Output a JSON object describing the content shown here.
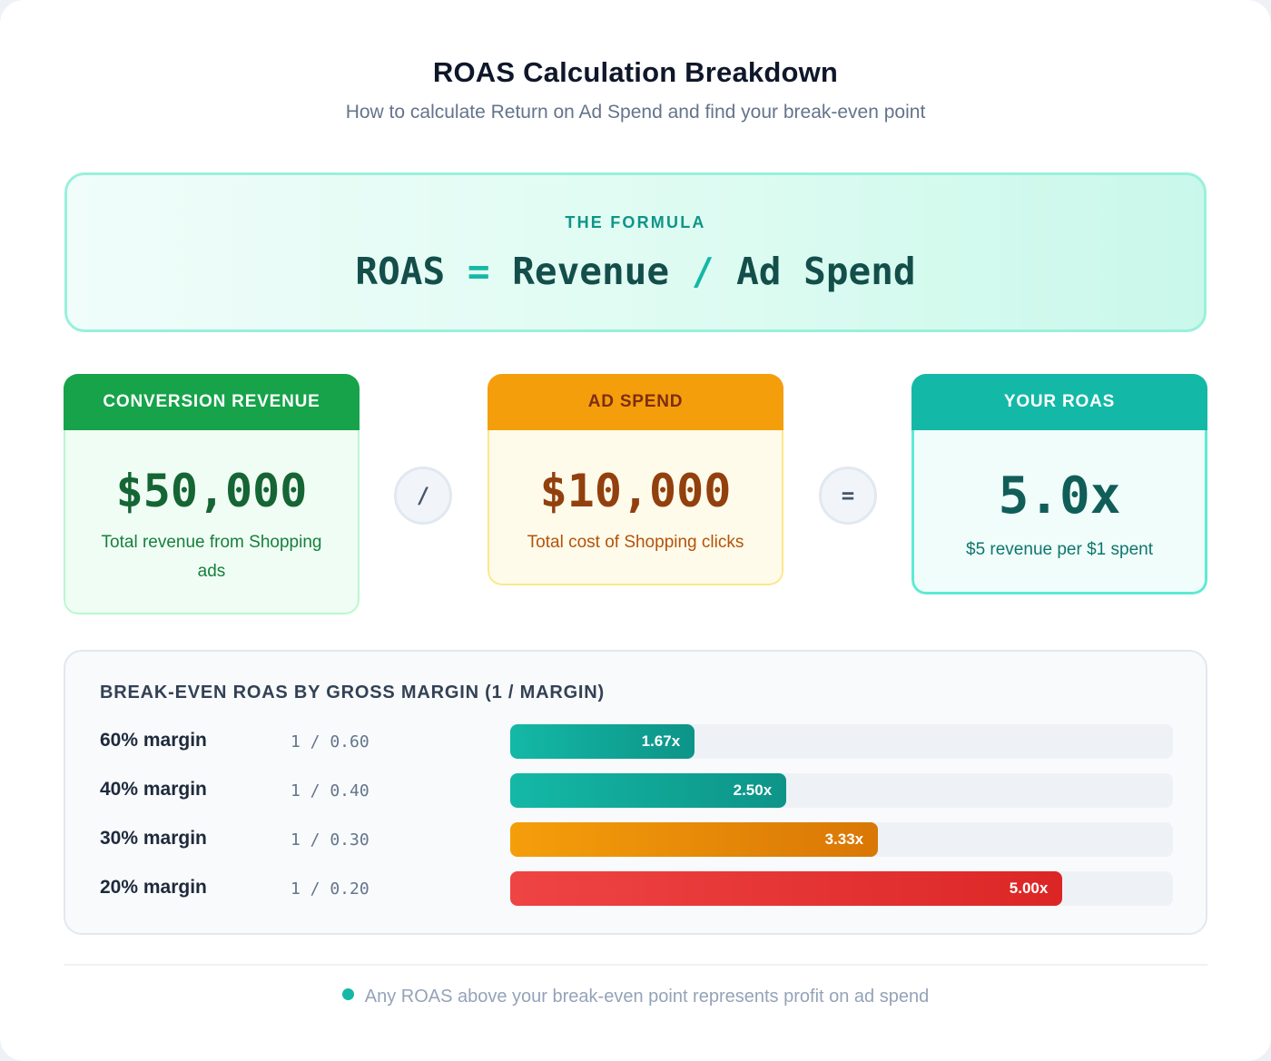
{
  "header": {
    "title": "ROAS Calculation Breakdown",
    "subtitle": "How to calculate Return on Ad Spend and find your break-even point"
  },
  "formula": {
    "label": "THE FORMULA",
    "lhs": "ROAS",
    "equals": "=",
    "term1": "Revenue",
    "divide": "/",
    "term2": "Ad Spend"
  },
  "cards": {
    "revenue": {
      "header": "CONVERSION REVENUE",
      "value": "$50,000",
      "description": "Total revenue from Shopping ads"
    },
    "divide_operator": "/",
    "spend": {
      "header": "AD SPEND",
      "value": "$10,000",
      "description": "Total cost of Shopping clicks"
    },
    "equals_operator": "=",
    "roas": {
      "header": "YOUR ROAS",
      "value": "5.0x",
      "description": "$5 revenue per $1 spent"
    }
  },
  "breakeven": {
    "title": "BREAK-EVEN ROAS BY GROSS MARGIN (1 / MARGIN)",
    "scale_max": 6,
    "rows": [
      {
        "label": "60% margin",
        "formula": "1 / 0.60",
        "value": 1.67,
        "value_label": "1.67x",
        "color": "teal"
      },
      {
        "label": "40% margin",
        "formula": "1 / 0.40",
        "value": 2.5,
        "value_label": "2.50x",
        "color": "teal"
      },
      {
        "label": "30% margin",
        "formula": "1 / 0.30",
        "value": 3.33,
        "value_label": "3.33x",
        "color": "orange"
      },
      {
        "label": "20% margin",
        "formula": "1 / 0.20",
        "value": 5.0,
        "value_label": "5.00x",
        "color": "red"
      }
    ]
  },
  "colors": {
    "teal": "#14b8a6",
    "teal_dark": "#0d9488",
    "orange": "#f59e0b",
    "orange_dark": "#d97706",
    "red": "#ef4444",
    "red_dark": "#dc2626",
    "green": "#16a34a"
  },
  "footer": {
    "note": "Any ROAS above your break-even point represents profit on ad spend",
    "bullet_icon": "dot-icon"
  }
}
